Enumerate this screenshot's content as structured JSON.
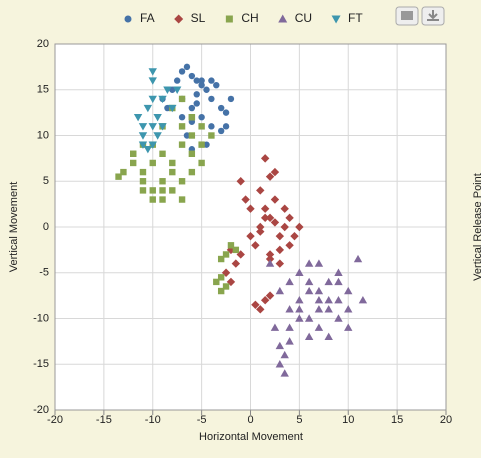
{
  "chart_data": {
    "type": "scatter",
    "x_label": "Horizontal Movement",
    "y_label": "Vertical Movement",
    "y2_label": "Vertical Release Point",
    "xlim": [
      -20,
      20
    ],
    "ylim": [
      -20,
      20
    ],
    "xticks": [
      -20,
      -15,
      -10,
      -5,
      0,
      5,
      10,
      15,
      20
    ],
    "yticks": [
      -20,
      -15,
      -10,
      -5,
      0,
      5,
      10,
      15,
      20
    ],
    "grid": true,
    "legend": "top",
    "series": [
      {
        "name": "FA",
        "color": "#4572a7",
        "marker": "circle",
        "x": [
          -7,
          -6.5,
          -6,
          -5.5,
          -5,
          -4.5,
          -4,
          -7.5,
          -8,
          -6,
          -5,
          -3,
          -2.5,
          -4,
          -6.5,
          -7,
          -5.5,
          -3.5,
          -2,
          -6,
          -8.5,
          -4.5,
          -5,
          -3,
          -7,
          -6,
          -4,
          -9,
          -5.5,
          -2.5
        ],
        "values": [
          17,
          17.5,
          16.5,
          16,
          15.5,
          15,
          14,
          16,
          15,
          13,
          12,
          13,
          12.5,
          11,
          10,
          12,
          14.5,
          15.5,
          14,
          11.5,
          13,
          9,
          16,
          10.5,
          14,
          8.5,
          16,
          14,
          13.5,
          11
        ]
      },
      {
        "name": "SL",
        "color": "#aa4643",
        "marker": "diamond",
        "x": [
          1,
          2,
          3,
          1.5,
          2.5,
          0.5,
          3.5,
          2,
          1,
          4,
          2,
          3,
          0,
          1.5,
          4.5,
          -1,
          -2,
          -1.5,
          1.5,
          2,
          1,
          0.5,
          3,
          2.5,
          -0.5,
          5,
          -2.5,
          -2,
          1,
          1.5,
          3.5,
          2,
          0,
          4,
          -1,
          2.5
        ],
        "values": [
          0,
          1,
          -1,
          2,
          3,
          -2,
          0,
          -3,
          4,
          1,
          5.5,
          -2.5,
          2,
          7.5,
          -1,
          -3,
          -6,
          -4,
          -8,
          -7.5,
          -9,
          -8.5,
          -4,
          6,
          3,
          0,
          -5,
          -2.5,
          -0.5,
          1,
          2,
          -3.5,
          -1,
          -2,
          5,
          0.5
        ]
      },
      {
        "name": "CH",
        "color": "#89a54e",
        "marker": "square",
        "x": [
          -13,
          -12,
          -11,
          -10,
          -9,
          -8,
          -7,
          -6,
          -5,
          -12,
          -11,
          -10,
          -9,
          -8,
          -7,
          -6,
          -11,
          -10,
          -9,
          -8,
          -7,
          -6,
          -5,
          -4,
          -13.5,
          -10,
          -8,
          -7,
          -9,
          -11,
          -6,
          -5,
          -2.5,
          -2,
          -3,
          -1.5,
          -3,
          -3.5,
          -2.5,
          -3,
          -12,
          -9,
          -7,
          -6
        ],
        "values": [
          6,
          7,
          5,
          4,
          3,
          4,
          5,
          6,
          7,
          8,
          9,
          7,
          8,
          6,
          9,
          10,
          4,
          3,
          5,
          7,
          11,
          12,
          9,
          10,
          5.5,
          9,
          13,
          14,
          11,
          6,
          8,
          11,
          -3,
          -2,
          -3.5,
          -2.5,
          -5.5,
          -6,
          -6.5,
          -7,
          8,
          4,
          3,
          12
        ]
      },
      {
        "name": "CU",
        "color": "#80699b",
        "marker": "triangle",
        "x": [
          4,
          5,
          6,
          7,
          8,
          9,
          10,
          5,
          6,
          7,
          8,
          9,
          4,
          5,
          6,
          7,
          8,
          3,
          4,
          9,
          10,
          11,
          6,
          7,
          3,
          3.5,
          4,
          2.5,
          3,
          3.5,
          5,
          8,
          9,
          7,
          10,
          11.5,
          2,
          6
        ],
        "values": [
          -6,
          -5,
          -4,
          -7,
          -6,
          -8,
          -7,
          -9,
          -10,
          -8,
          -9,
          -10,
          -9,
          -8,
          -7,
          -11,
          -12,
          -7,
          -11,
          -5,
          -9,
          -3.5,
          -12,
          -4,
          -13,
          -14,
          -12.5,
          -11,
          -15,
          -16,
          -10,
          -8,
          -6,
          -9,
          -11,
          -8,
          -4,
          -6
        ]
      },
      {
        "name": "FT",
        "color": "#3d96ae",
        "marker": "triangle-down",
        "x": [
          -10,
          -9.5,
          -11,
          -10.5,
          -9,
          -10,
          -11.5,
          -8.5,
          -10,
          -9,
          -10.5,
          -11,
          -10,
          -9.5,
          -8,
          -11,
          -10,
          -7.5
        ],
        "values": [
          11,
          12,
          10,
          13,
          14,
          9,
          12,
          15,
          17,
          11,
          8.5,
          9,
          14,
          10,
          13,
          11,
          16,
          15
        ]
      }
    ]
  }
}
